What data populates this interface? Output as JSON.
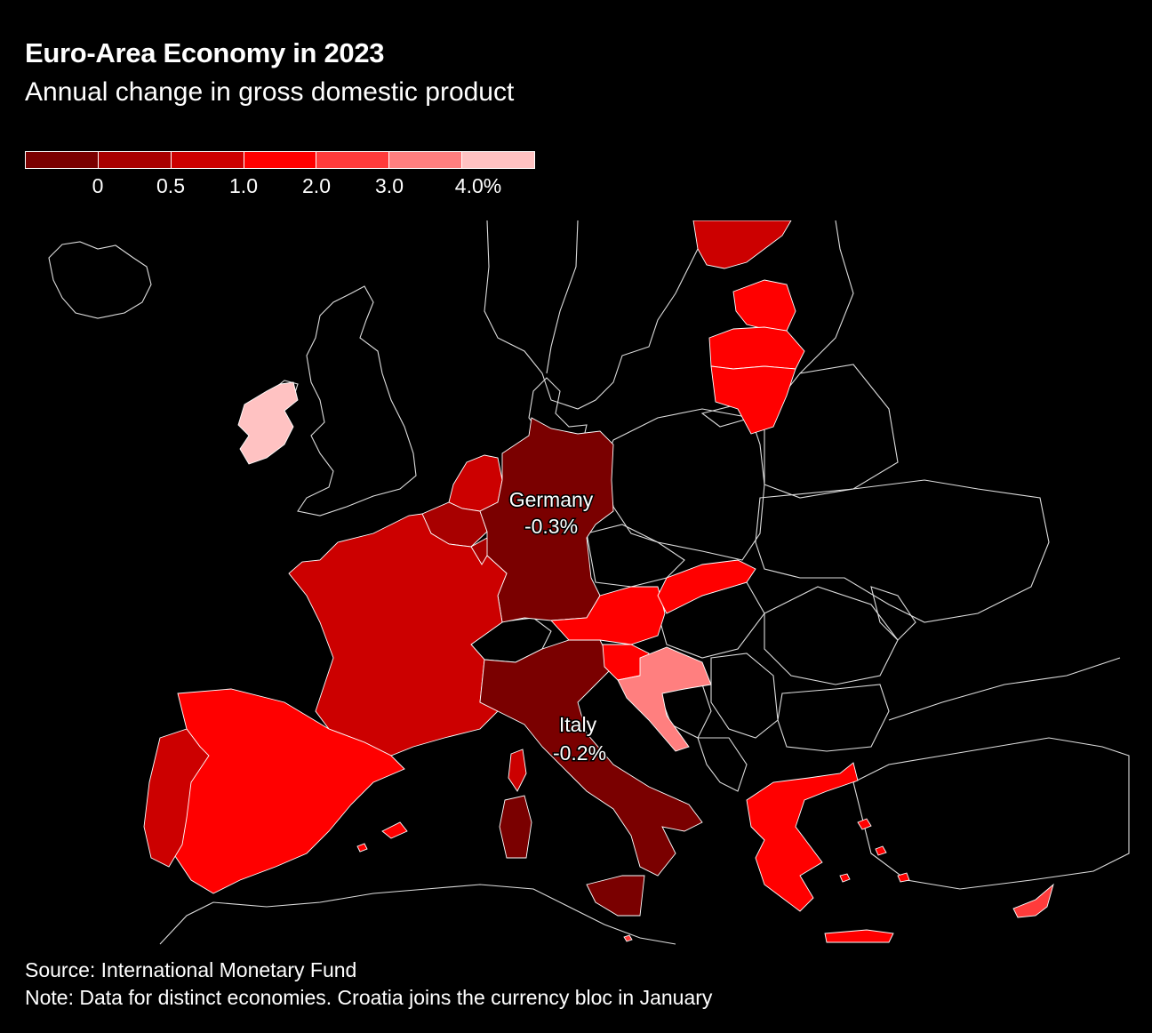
{
  "title": "Euro-Area Economy in 2023",
  "subtitle": "Annual change in gross domestic product",
  "legend": {
    "colors": [
      "#7a0000",
      "#a80000",
      "#cc0000",
      "#ff0000",
      "#ff3b3b",
      "#ff7f7f",
      "#ffc2c2"
    ],
    "ticks": [
      "0",
      "0.5",
      "1.0",
      "2.0",
      "3.0",
      "4.0%"
    ]
  },
  "labels": {
    "germany_name": "Germany",
    "germany_value": "-0.3%",
    "italy_name": "Italy",
    "italy_value": "-0.2%"
  },
  "chart_data": {
    "type": "choropleth",
    "metric": "GDP change",
    "bins": [
      "below 0",
      "0 to 0.5",
      "0.5 to 1.0",
      "1.0 to 2.0",
      "2.0 to 3.0",
      "3.0 to 4.0",
      "above 4.0"
    ],
    "regions": [
      {
        "name": "Germany",
        "value": -0.3,
        "bin": 0
      },
      {
        "name": "Italy",
        "value": -0.2,
        "bin": 0
      },
      {
        "name": "Netherlands",
        "bin": 2
      },
      {
        "name": "Belgium",
        "bin": 1
      },
      {
        "name": "Luxembourg",
        "bin": 1
      },
      {
        "name": "France",
        "bin": 2
      },
      {
        "name": "Spain",
        "bin": 3
      },
      {
        "name": "Portugal",
        "bin": 2
      },
      {
        "name": "Ireland",
        "bin": 6
      },
      {
        "name": "Austria",
        "bin": 3
      },
      {
        "name": "Slovakia",
        "bin": 3
      },
      {
        "name": "Slovenia",
        "bin": 3
      },
      {
        "name": "Croatia",
        "bin": 5
      },
      {
        "name": "Greece",
        "bin": 3
      },
      {
        "name": "Cyprus",
        "bin": 4
      },
      {
        "name": "Malta",
        "bin": 4
      },
      {
        "name": "Finland",
        "bin": 2
      },
      {
        "name": "Estonia",
        "bin": 3
      },
      {
        "name": "Latvia",
        "bin": 3
      },
      {
        "name": "Lithuania",
        "bin": 3
      }
    ]
  },
  "source": "Source: International Monetary Fund",
  "note": "Note: Data for distinct economies. Croatia joins the currency bloc in January"
}
